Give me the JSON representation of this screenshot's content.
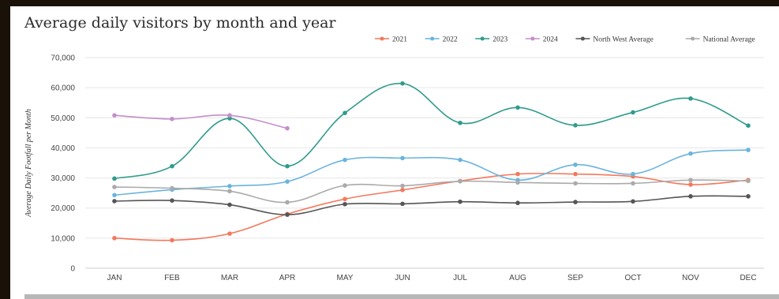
{
  "chart_data": {
    "type": "line",
    "title": "Average daily visitors by month and year",
    "ylabel": "Average Daily Footfall per Month",
    "xlabel": "",
    "categories": [
      "JAN",
      "FEB",
      "MAR",
      "APR",
      "MAY",
      "JUN",
      "JUL",
      "AUG",
      "SEP",
      "OCT",
      "NOV",
      "DEC"
    ],
    "ylim": [
      0,
      70000
    ],
    "yticks": [
      0,
      10000,
      20000,
      30000,
      40000,
      50000,
      60000,
      70000
    ],
    "ytick_labels": [
      "0",
      "10,000",
      "20,000",
      "30,000",
      "40,000",
      "50,000",
      "60,000",
      "70,000"
    ],
    "grid": true,
    "legend_position": "top-right",
    "series": [
      {
        "name": "2021",
        "color": "#f4785c",
        "values": [
          10000,
          9300,
          11500,
          18000,
          23000,
          26000,
          29000,
          31300,
          31300,
          30500,
          27800,
          29300
        ]
      },
      {
        "name": "2022",
        "color": "#6ab4de",
        "values": [
          24300,
          26100,
          27300,
          28800,
          36000,
          36600,
          36000,
          29300,
          34400,
          31300,
          38100,
          39300
        ]
      },
      {
        "name": "2023",
        "color": "#2f9b8c",
        "values": [
          29800,
          33900,
          49800,
          33900,
          51600,
          61400,
          48300,
          53400,
          47500,
          51800,
          56400,
          47400
        ]
      },
      {
        "name": "2024",
        "color": "#c38fc8",
        "values": [
          50800,
          49600,
          50800,
          46500,
          null,
          null,
          null,
          null,
          null,
          null,
          null,
          null
        ]
      },
      {
        "name": "North West Average",
        "color": "#555555",
        "values": [
          22300,
          22500,
          21100,
          17800,
          21300,
          21400,
          22100,
          21700,
          22000,
          22200,
          23900,
          23900
        ]
      },
      {
        "name": "National Average",
        "color": "#aaaaaa",
        "values": [
          27000,
          26600,
          25600,
          21900,
          27500,
          27400,
          28900,
          28500,
          28200,
          28200,
          29300,
          29000
        ]
      }
    ]
  }
}
